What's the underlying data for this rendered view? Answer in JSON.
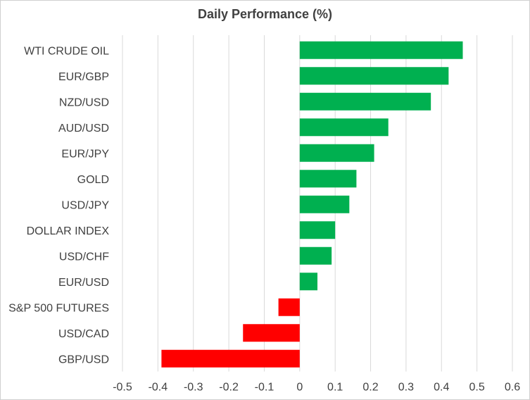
{
  "chart_data": {
    "type": "bar",
    "orientation": "horizontal",
    "title": "Daily Performance  (%)",
    "xlabel": "",
    "ylabel": "",
    "xlim": [
      -0.5,
      0.6
    ],
    "x_ticks": [
      "-0.5",
      "-0.4",
      "-0.3",
      "-0.2",
      "-0.1",
      "0",
      "0.1",
      "0.2",
      "0.3",
      "0.4",
      "0.5",
      "0.6"
    ],
    "grid": "vertical",
    "legend": "none",
    "categories": [
      "WTI CRUDE OIL",
      "EUR/GBP",
      "NZD/USD",
      "AUD/USD",
      "EUR/JPY",
      "GOLD",
      "USD/JPY",
      "DOLLAR INDEX",
      "USD/CHF",
      "EUR/USD",
      "S&P 500 FUTURES",
      "USD/CAD",
      "GBP/USD"
    ],
    "values": [
      0.46,
      0.42,
      0.37,
      0.25,
      0.21,
      0.16,
      0.14,
      0.1,
      0.09,
      0.05,
      -0.06,
      -0.16,
      -0.39
    ],
    "colors": {
      "positive": "#00b050",
      "negative": "#ff0000",
      "grid": "#d9d9d9",
      "text": "#404040"
    }
  }
}
